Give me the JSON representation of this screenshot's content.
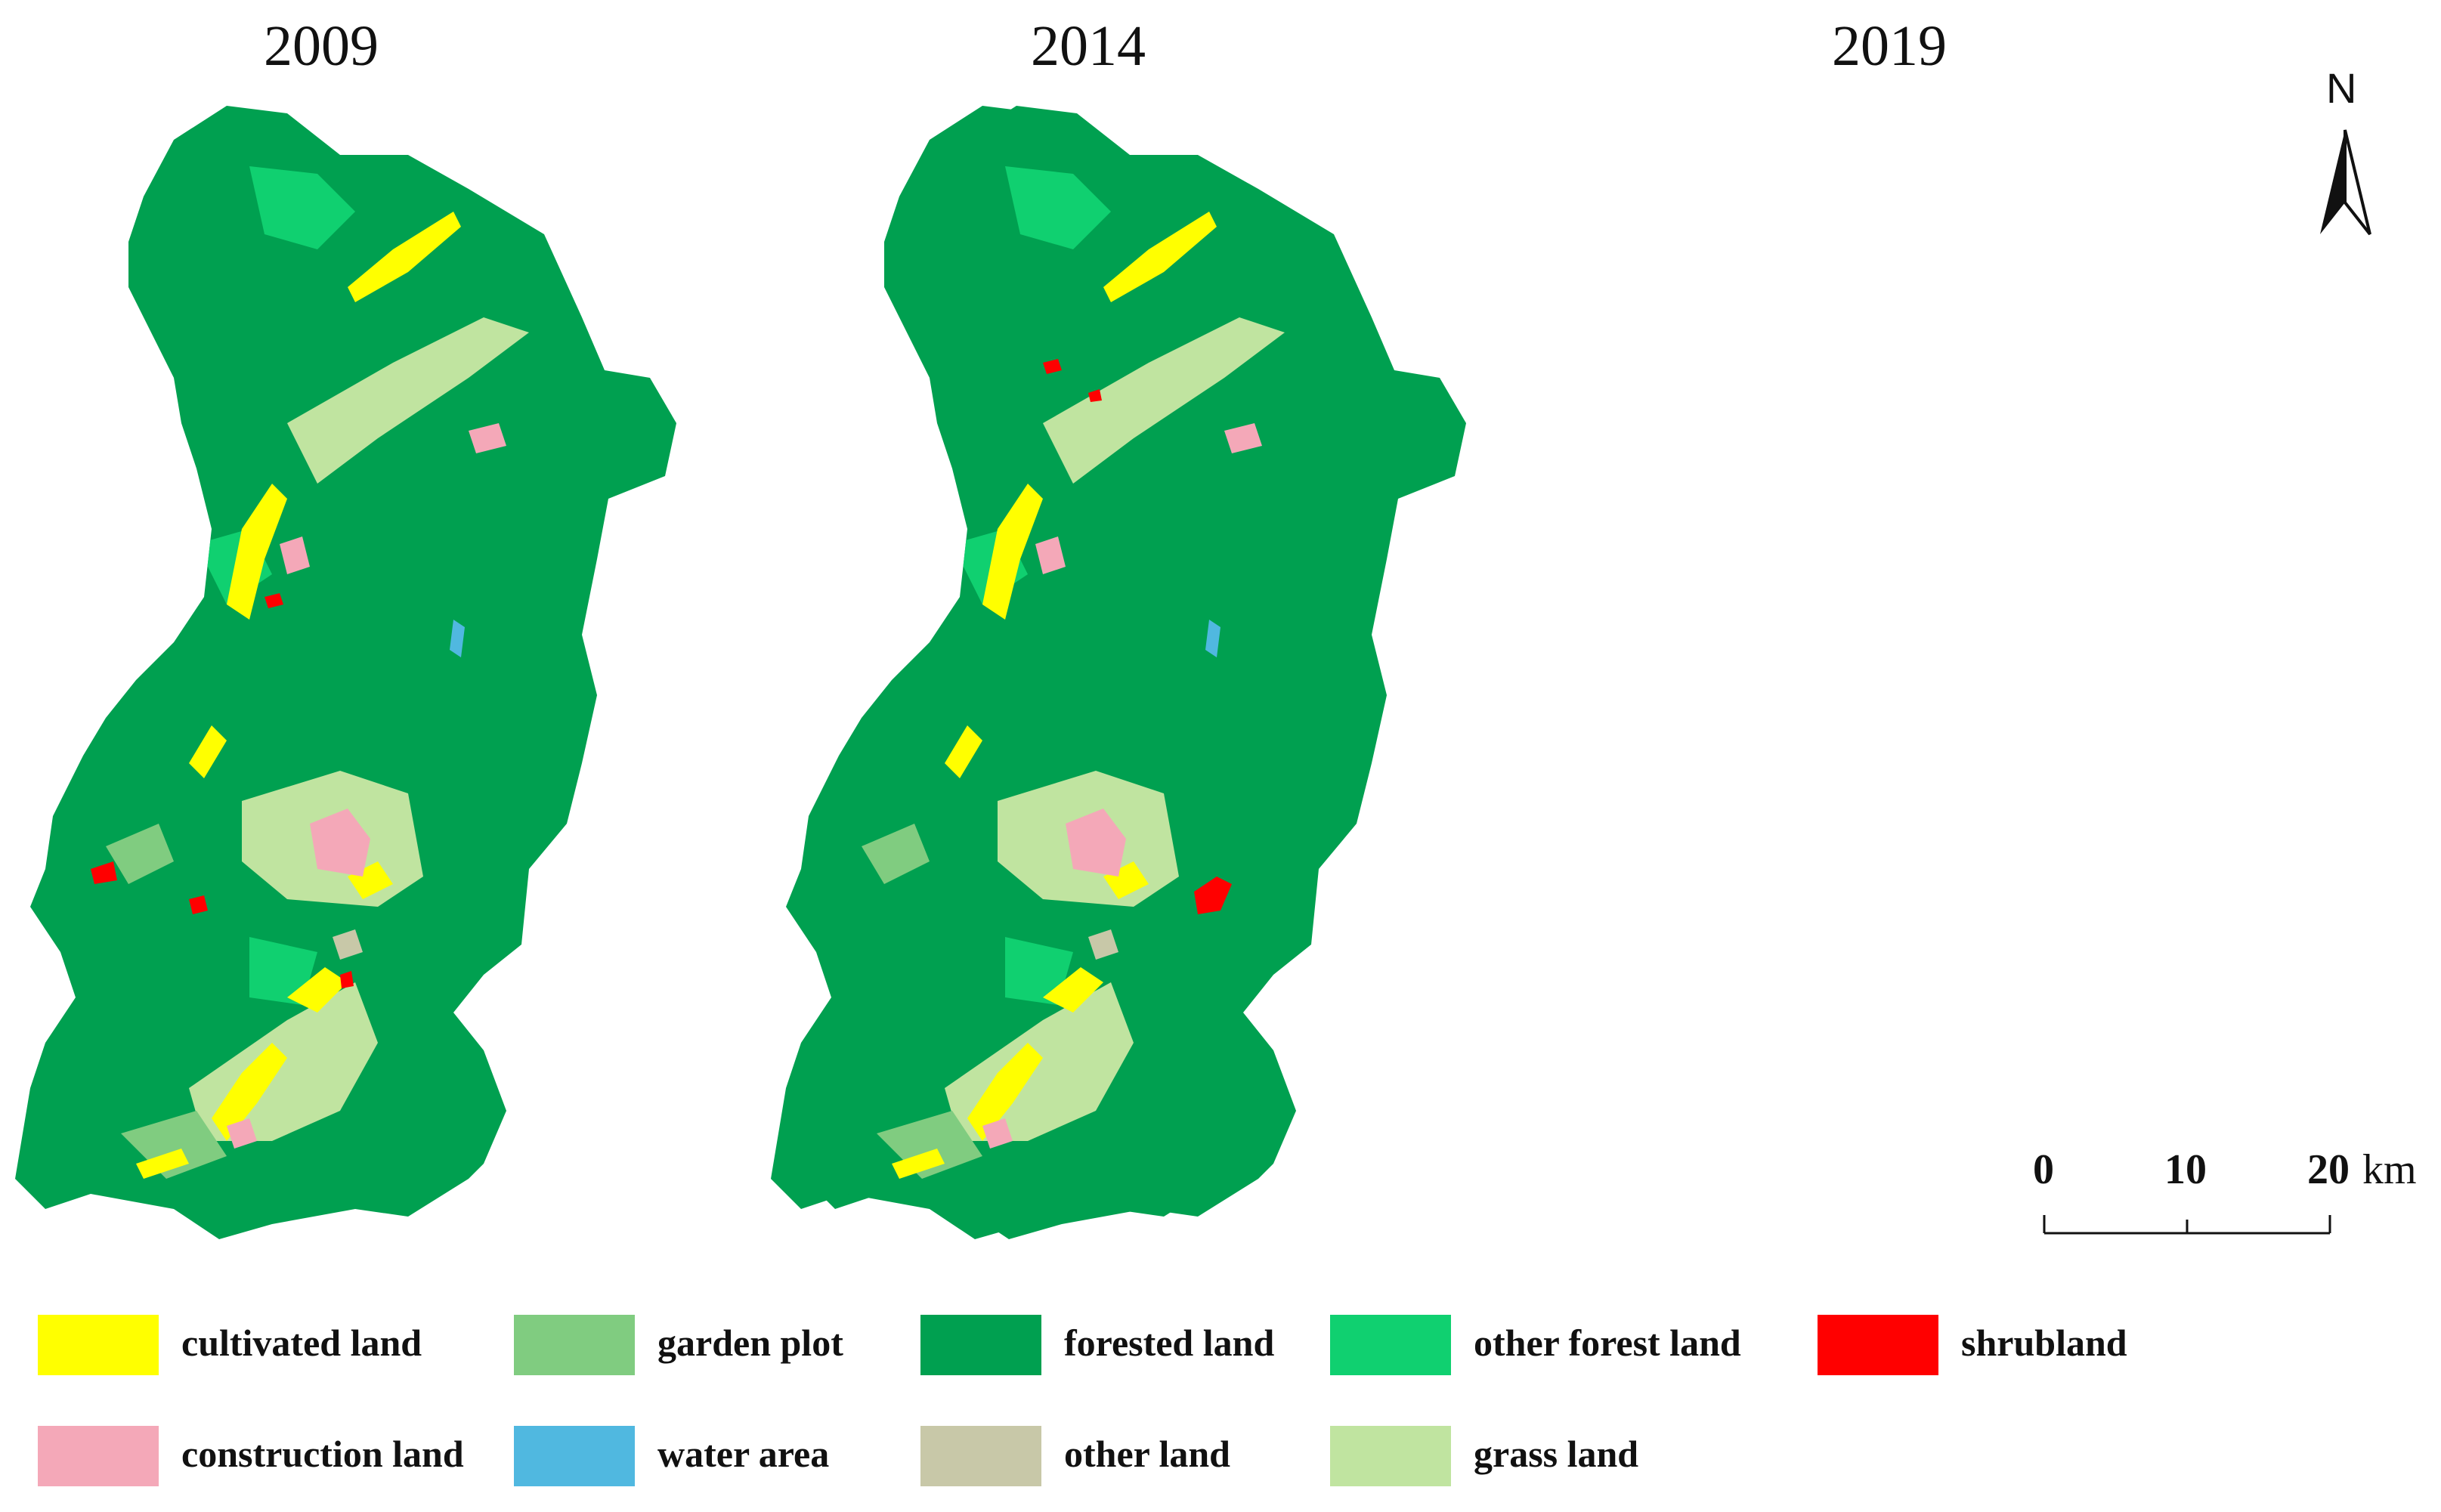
{
  "maps": [
    {
      "year": "2009"
    },
    {
      "year": "2014"
    },
    {
      "year": "2019"
    }
  ],
  "north_arrow": {
    "label": "N"
  },
  "scale_bar": {
    "ticks": [
      "0",
      "10",
      "20"
    ],
    "unit": "km"
  },
  "legend": [
    {
      "label": "cultivated land",
      "color": "#ffff00"
    },
    {
      "label": "garden plot",
      "color": "#80cc80"
    },
    {
      "label": "forested land",
      "color": "#00a050"
    },
    {
      "label": "other forest land",
      "color": "#10d070"
    },
    {
      "label": "shrubland",
      "color": "#ff0000"
    },
    {
      "label": "construction land",
      "color": "#f4a8b8"
    },
    {
      "label": "water area",
      "color": "#50b8e0"
    },
    {
      "label": "other land",
      "color": "#c8c8a8"
    },
    {
      "label": "grass land",
      "color": "#c0e4a0"
    }
  ]
}
